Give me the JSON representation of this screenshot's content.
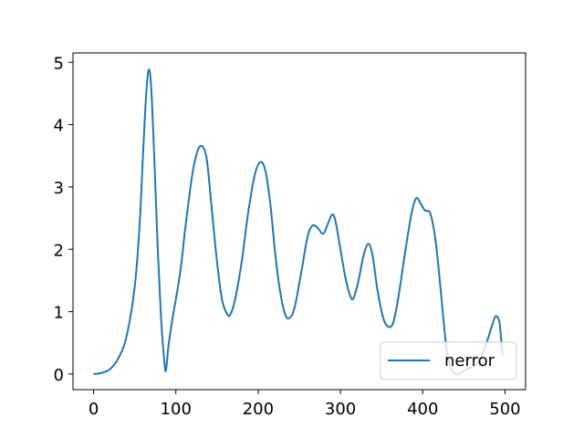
{
  "chart_data": {
    "type": "line",
    "xlim": [
      -25,
      525
    ],
    "ylim": [
      -0.25,
      5.15
    ],
    "xticks": [
      0,
      100,
      200,
      300,
      400,
      500
    ],
    "yticks": [
      0,
      1,
      2,
      3,
      4,
      5
    ],
    "x_tick_labels": [
      "0",
      "100",
      "200",
      "300",
      "400",
      "500"
    ],
    "y_tick_labels": [
      "0",
      "1",
      "2",
      "3",
      "4",
      "5"
    ],
    "grid": false,
    "legend_position": "lower-right",
    "series": [
      {
        "name": "nerror",
        "color": "#1f77b4",
        "points": [
          [
            0,
            0.0
          ],
          [
            10,
            0.02
          ],
          [
            20,
            0.08
          ],
          [
            30,
            0.25
          ],
          [
            40,
            0.6
          ],
          [
            50,
            1.4
          ],
          [
            56,
            2.4
          ],
          [
            60,
            3.5
          ],
          [
            64,
            4.5
          ],
          [
            67,
            4.88
          ],
          [
            70,
            4.6
          ],
          [
            74,
            3.4
          ],
          [
            78,
            2.0
          ],
          [
            82,
            0.9
          ],
          [
            86,
            0.2
          ],
          [
            88,
            0.06
          ],
          [
            91,
            0.45
          ],
          [
            96,
            0.9
          ],
          [
            100,
            1.2
          ],
          [
            106,
            1.7
          ],
          [
            112,
            2.4
          ],
          [
            120,
            3.2
          ],
          [
            127,
            3.6
          ],
          [
            133,
            3.64
          ],
          [
            138,
            3.4
          ],
          [
            144,
            2.6
          ],
          [
            150,
            1.8
          ],
          [
            156,
            1.2
          ],
          [
            162,
            0.97
          ],
          [
            166,
            0.95
          ],
          [
            172,
            1.2
          ],
          [
            180,
            1.8
          ],
          [
            188,
            2.6
          ],
          [
            196,
            3.2
          ],
          [
            203,
            3.4
          ],
          [
            209,
            3.25
          ],
          [
            215,
            2.7
          ],
          [
            221,
            1.9
          ],
          [
            227,
            1.3
          ],
          [
            233,
            0.95
          ],
          [
            238,
            0.9
          ],
          [
            244,
            1.05
          ],
          [
            252,
            1.6
          ],
          [
            260,
            2.2
          ],
          [
            266,
            2.38
          ],
          [
            272,
            2.35
          ],
          [
            279,
            2.25
          ],
          [
            285,
            2.42
          ],
          [
            290,
            2.56
          ],
          [
            294,
            2.45
          ],
          [
            300,
            2.0
          ],
          [
            306,
            1.55
          ],
          [
            312,
            1.25
          ],
          [
            316,
            1.22
          ],
          [
            322,
            1.5
          ],
          [
            328,
            1.9
          ],
          [
            334,
            2.09
          ],
          [
            339,
            1.9
          ],
          [
            345,
            1.35
          ],
          [
            352,
            0.9
          ],
          [
            358,
            0.76
          ],
          [
            364,
            0.82
          ],
          [
            370,
            1.2
          ],
          [
            378,
            1.9
          ],
          [
            386,
            2.55
          ],
          [
            392,
            2.82
          ],
          [
            398,
            2.72
          ],
          [
            403,
            2.62
          ],
          [
            409,
            2.58
          ],
          [
            415,
            2.2
          ],
          [
            420,
            1.6
          ],
          [
            425,
            0.9
          ],
          [
            430,
            0.3
          ],
          [
            436,
            0.05
          ],
          [
            442,
            0.0
          ],
          [
            450,
            0.05
          ],
          [
            458,
            0.1
          ],
          [
            465,
            0.15
          ],
          [
            472,
            0.3
          ],
          [
            480,
            0.6
          ],
          [
            486,
            0.85
          ],
          [
            489,
            0.93
          ],
          [
            493,
            0.85
          ],
          [
            495,
            0.6
          ],
          [
            497,
            0.3
          ]
        ]
      }
    ]
  }
}
